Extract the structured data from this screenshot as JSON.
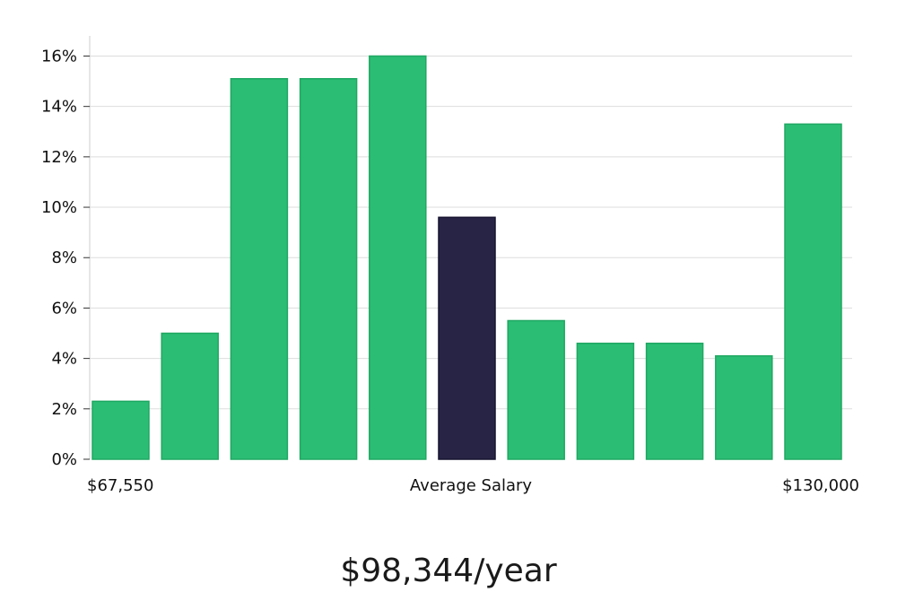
{
  "chart_data": {
    "type": "bar",
    "values": [
      2.3,
      5.0,
      15.1,
      15.1,
      16.0,
      9.6,
      5.5,
      4.6,
      4.6,
      4.1,
      13.3
    ],
    "highlight_index": 5,
    "ylim": [
      0,
      16.8
    ],
    "y_ticks": [
      "0%",
      "2%",
      "4%",
      "6%",
      "8%",
      "10%",
      "12%",
      "14%",
      "16%"
    ],
    "y_tick_values": [
      0,
      2,
      4,
      6,
      8,
      10,
      12,
      14,
      16
    ],
    "x_labels": {
      "left": "$67,550",
      "center": "Average Salary",
      "right": "$130,000"
    },
    "grid": true,
    "colors": {
      "bar": "#2bbd74",
      "bar_border": "#1fa862",
      "highlight": "#272445",
      "grid": "#dddddd",
      "axis": "#cccccc"
    }
  },
  "headline": "$98,344/year"
}
